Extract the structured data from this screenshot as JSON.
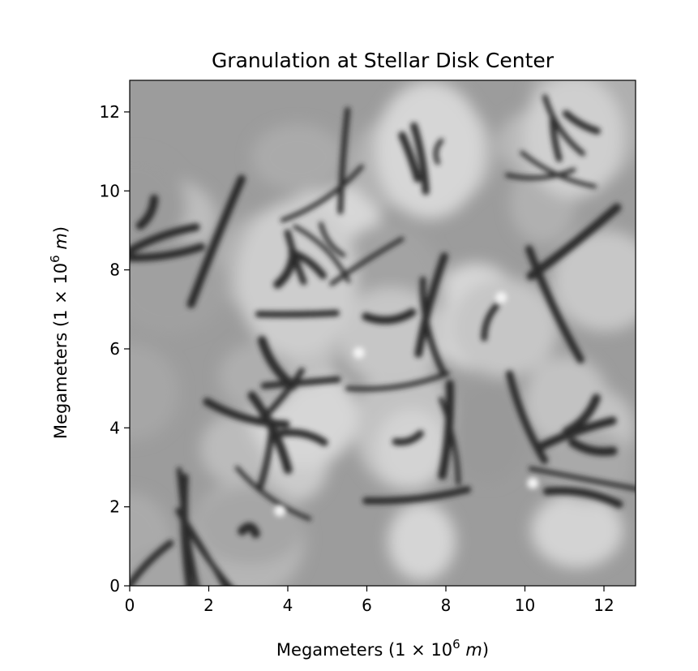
{
  "chart_data": {
    "type": "heatmap",
    "title": "Granulation at Stellar Disk Center",
    "xlabel": "Megameters (1 × 10",
    "ylabel": "Megameters (1 × 10",
    "label_exponent": "6",
    "label_unit": "m",
    "label_close": ")",
    "xlim": [
      0,
      12.8
    ],
    "ylim": [
      0,
      12.8
    ],
    "xticks": [
      "0",
      "2",
      "4",
      "6",
      "8",
      "10",
      "12"
    ],
    "yticks": [
      "0",
      "2",
      "4",
      "6",
      "8",
      "10",
      "12"
    ],
    "colormap": "gray",
    "grid": false,
    "legend": "none",
    "field_description_seeds_count": 38
  }
}
